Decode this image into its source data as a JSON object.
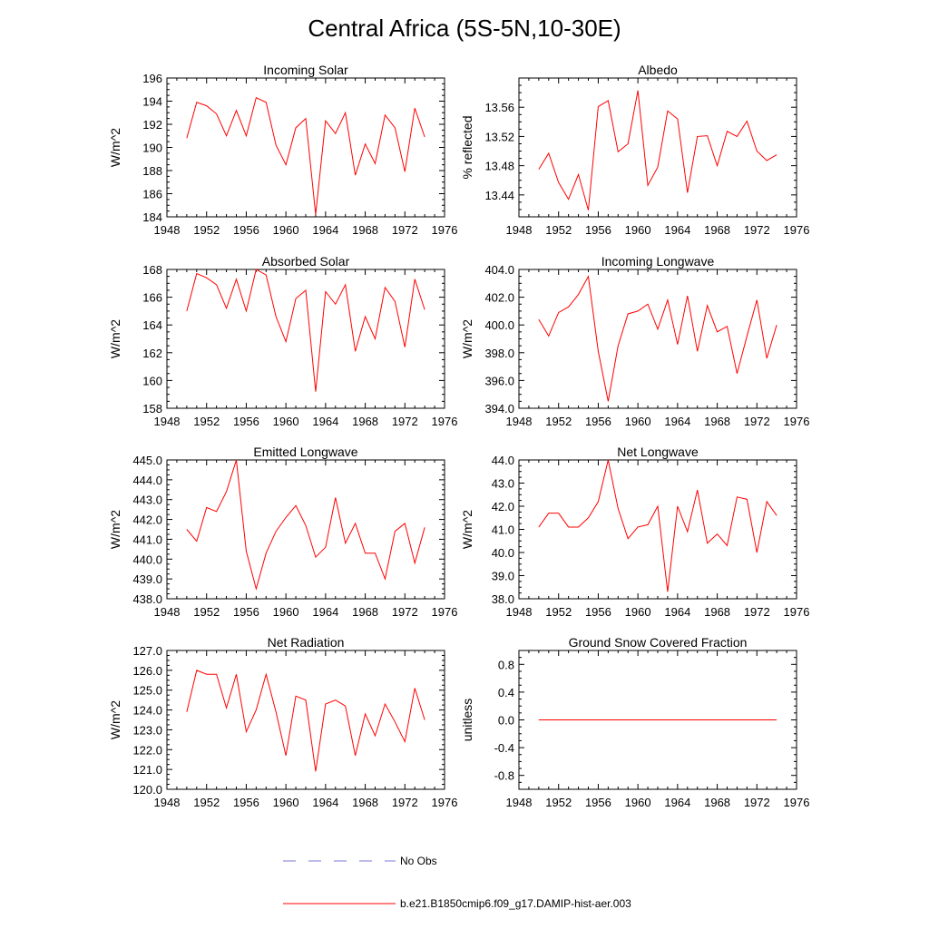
{
  "title": "Central Africa (5S-5N,10-30E)",
  "colors": {
    "model": "#ff0000",
    "obs": "#7a7ad6"
  },
  "legend": [
    {
      "label": "No Obs",
      "style": "dashed",
      "color": "#7a7ad6"
    },
    {
      "label": "b.e21.B1850cmip6.f09_g17.DAMIP-hist-aer.003",
      "style": "solid",
      "color": "#ff0000"
    }
  ],
  "chart_data": [
    {
      "type": "line",
      "title": "Incoming Solar",
      "ylabel": "W/m^2",
      "xlim": [
        1948,
        1976
      ],
      "xticks": [
        1948,
        1952,
        1956,
        1960,
        1964,
        1968,
        1972,
        1976
      ],
      "ylim": [
        184,
        196
      ],
      "yticks": [
        184,
        186,
        188,
        190,
        192,
        194,
        196
      ],
      "ytick_decimals": 0,
      "x": [
        1950,
        1951,
        1952,
        1953,
        1954,
        1955,
        1956,
        1957,
        1958,
        1959,
        1960,
        1961,
        1962,
        1963,
        1964,
        1965,
        1966,
        1967,
        1968,
        1969,
        1970,
        1971,
        1972,
        1973,
        1974
      ],
      "series": [
        {
          "values": [
            190.8,
            193.9,
            193.6,
            192.9,
            191.0,
            193.2,
            191.0,
            194.3,
            193.9,
            190.2,
            188.5,
            191.7,
            192.5,
            184.2,
            192.3,
            191.2,
            193.0,
            187.6,
            190.3,
            188.6,
            192.8,
            191.7,
            187.9,
            193.4,
            190.9
          ]
        }
      ]
    },
    {
      "type": "line",
      "title": "Albedo",
      "ylabel": "% reflected",
      "xlim": [
        1948,
        1976
      ],
      "xticks": [
        1948,
        1952,
        1956,
        1960,
        1964,
        1968,
        1972,
        1976
      ],
      "ylim": [
        13.41,
        13.6
      ],
      "yticks": [
        13.44,
        13.48,
        13.52,
        13.56
      ],
      "ytick_decimals": 2,
      "x": [
        1950,
        1951,
        1952,
        1953,
        1954,
        1955,
        1956,
        1957,
        1958,
        1959,
        1960,
        1961,
        1962,
        1963,
        1964,
        1965,
        1966,
        1967,
        1968,
        1969,
        1970,
        1971,
        1972,
        1973,
        1974
      ],
      "series": [
        {
          "values": [
            13.475,
            13.497,
            13.457,
            13.434,
            13.468,
            13.419,
            13.561,
            13.569,
            13.499,
            13.51,
            13.583,
            13.453,
            13.478,
            13.555,
            13.544,
            13.443,
            13.52,
            13.521,
            13.48,
            13.527,
            13.52,
            13.541,
            13.5,
            13.487,
            13.495
          ]
        }
      ]
    },
    {
      "type": "line",
      "title": "Absorbed Solar",
      "ylabel": "W/m^2",
      "xlim": [
        1948,
        1976
      ],
      "xticks": [
        1948,
        1952,
        1956,
        1960,
        1964,
        1968,
        1972,
        1976
      ],
      "ylim": [
        158,
        168
      ],
      "yticks": [
        158,
        160,
        162,
        164,
        166,
        168
      ],
      "ytick_decimals": 0,
      "x": [
        1950,
        1951,
        1952,
        1953,
        1954,
        1955,
        1956,
        1957,
        1958,
        1959,
        1960,
        1961,
        1962,
        1963,
        1964,
        1965,
        1966,
        1967,
        1968,
        1969,
        1970,
        1971,
        1972,
        1973,
        1974
      ],
      "series": [
        {
          "values": [
            165.0,
            167.7,
            167.4,
            166.9,
            165.2,
            167.3,
            165.0,
            168.0,
            167.6,
            164.6,
            162.8,
            165.9,
            166.5,
            159.2,
            166.4,
            165.5,
            166.9,
            162.1,
            164.6,
            163.0,
            166.7,
            165.7,
            162.4,
            167.3,
            165.1
          ]
        }
      ]
    },
    {
      "type": "line",
      "title": "Incoming Longwave",
      "ylabel": "W/m^2",
      "xlim": [
        1948,
        1976
      ],
      "xticks": [
        1948,
        1952,
        1956,
        1960,
        1964,
        1968,
        1972,
        1976
      ],
      "ylim": [
        394.0,
        404.0
      ],
      "yticks": [
        394.0,
        396.0,
        398.0,
        400.0,
        402.0,
        404.0
      ],
      "ytick_decimals": 1,
      "x": [
        1950,
        1951,
        1952,
        1953,
        1954,
        1955,
        1956,
        1957,
        1958,
        1959,
        1960,
        1961,
        1962,
        1963,
        1964,
        1965,
        1966,
        1967,
        1968,
        1969,
        1970,
        1971,
        1972,
        1973,
        1974
      ],
      "series": [
        {
          "values": [
            400.4,
            399.2,
            400.9,
            401.3,
            402.2,
            403.5,
            398.1,
            394.5,
            398.5,
            400.8,
            401.0,
            401.5,
            399.7,
            401.8,
            398.6,
            402.1,
            398.1,
            401.4,
            399.5,
            399.9,
            396.5,
            399.2,
            401.8,
            397.6,
            400.0
          ]
        }
      ]
    },
    {
      "type": "line",
      "title": "Emitted Longwave",
      "ylabel": "W/m^2",
      "xlim": [
        1948,
        1976
      ],
      "xticks": [
        1948,
        1952,
        1956,
        1960,
        1964,
        1968,
        1972,
        1976
      ],
      "ylim": [
        438.0,
        445.0
      ],
      "yticks": [
        438.0,
        439.0,
        440.0,
        441.0,
        442.0,
        443.0,
        444.0,
        445.0
      ],
      "ytick_decimals": 1,
      "x": [
        1950,
        1951,
        1952,
        1953,
        1954,
        1955,
        1956,
        1957,
        1958,
        1959,
        1960,
        1961,
        1962,
        1963,
        1964,
        1965,
        1966,
        1967,
        1968,
        1969,
        1970,
        1971,
        1972,
        1973,
        1974
      ],
      "series": [
        {
          "values": [
            441.5,
            440.9,
            442.6,
            442.4,
            443.4,
            445.0,
            440.4,
            438.5,
            440.3,
            441.4,
            442.1,
            442.7,
            441.7,
            440.1,
            440.6,
            443.1,
            440.8,
            441.8,
            440.3,
            440.3,
            439.0,
            441.4,
            441.8,
            439.8,
            441.6
          ]
        }
      ]
    },
    {
      "type": "line",
      "title": "Net Longwave",
      "ylabel": "W/m^2",
      "xlim": [
        1948,
        1976
      ],
      "xticks": [
        1948,
        1952,
        1956,
        1960,
        1964,
        1968,
        1972,
        1976
      ],
      "ylim": [
        38.0,
        44.0
      ],
      "yticks": [
        38.0,
        39.0,
        40.0,
        41.0,
        42.0,
        43.0,
        44.0
      ],
      "ytick_decimals": 1,
      "x": [
        1950,
        1951,
        1952,
        1953,
        1954,
        1955,
        1956,
        1957,
        1958,
        1959,
        1960,
        1961,
        1962,
        1963,
        1964,
        1965,
        1966,
        1967,
        1968,
        1969,
        1970,
        1971,
        1972,
        1973,
        1974
      ],
      "series": [
        {
          "values": [
            41.1,
            41.7,
            41.7,
            41.1,
            41.1,
            41.5,
            42.2,
            44.0,
            41.9,
            40.6,
            41.1,
            41.2,
            42.0,
            38.3,
            42.0,
            40.9,
            42.7,
            40.4,
            40.8,
            40.3,
            42.4,
            42.3,
            40.0,
            42.2,
            41.6
          ]
        }
      ]
    },
    {
      "type": "line",
      "title": "Net Radiation",
      "ylabel": "W/m^2",
      "xlim": [
        1948,
        1976
      ],
      "xticks": [
        1948,
        1952,
        1956,
        1960,
        1964,
        1968,
        1972,
        1976
      ],
      "ylim": [
        120.0,
        127.0
      ],
      "yticks": [
        120.0,
        121.0,
        122.0,
        123.0,
        124.0,
        125.0,
        126.0,
        127.0
      ],
      "ytick_decimals": 1,
      "x": [
        1950,
        1951,
        1952,
        1953,
        1954,
        1955,
        1956,
        1957,
        1958,
        1959,
        1960,
        1961,
        1962,
        1963,
        1964,
        1965,
        1966,
        1967,
        1968,
        1969,
        1970,
        1971,
        1972,
        1973,
        1974
      ],
      "series": [
        {
          "values": [
            123.9,
            126.0,
            125.8,
            125.8,
            124.1,
            125.8,
            122.9,
            124.0,
            125.8,
            123.9,
            121.7,
            124.7,
            124.5,
            120.9,
            124.3,
            124.5,
            124.2,
            121.7,
            123.8,
            122.7,
            124.3,
            123.4,
            122.4,
            125.1,
            123.5
          ]
        }
      ]
    },
    {
      "type": "line",
      "title": "Ground Snow Covered Fraction",
      "ylabel": "unitless",
      "xlim": [
        1948,
        1976
      ],
      "xticks": [
        1948,
        1952,
        1956,
        1960,
        1964,
        1968,
        1972,
        1976
      ],
      "ylim": [
        -1.0,
        1.0
      ],
      "yticks": [
        -0.8,
        -0.4,
        0.0,
        0.4,
        0.8
      ],
      "ytick_decimals": 1,
      "x": [
        1950,
        1951,
        1952,
        1953,
        1954,
        1955,
        1956,
        1957,
        1958,
        1959,
        1960,
        1961,
        1962,
        1963,
        1964,
        1965,
        1966,
        1967,
        1968,
        1969,
        1970,
        1971,
        1972,
        1973,
        1974
      ],
      "series": [
        {
          "values": [
            0,
            0,
            0,
            0,
            0,
            0,
            0,
            0,
            0,
            0,
            0,
            0,
            0,
            0,
            0,
            0,
            0,
            0,
            0,
            0,
            0,
            0,
            0,
            0,
            0
          ]
        }
      ]
    }
  ]
}
